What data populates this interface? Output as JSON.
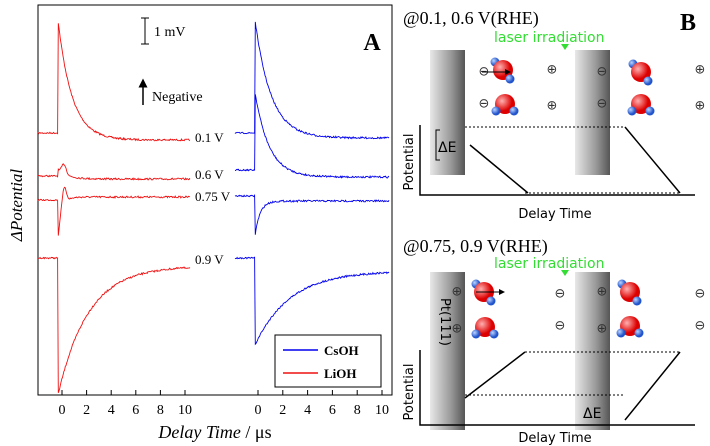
{
  "panel_a": {
    "label": "A",
    "scale_bar": "1 mV",
    "arrow_label": "Negative",
    "y_label": "ΔPotential",
    "x_label": "Delay Time",
    "x_unit": "/ μs",
    "xticks": [
      0,
      2,
      4,
      6,
      8,
      10
    ],
    "potential_labels": [
      "0.1 V",
      "0.6 V",
      "0.75 V",
      "0.9 V"
    ],
    "legend": [
      {
        "name": "CsOH",
        "color": "#0000ee"
      },
      {
        "name": "LiOH",
        "color": "#ee1111"
      }
    ]
  },
  "panel_b": {
    "label": "B",
    "top": {
      "title": "@0.1, 0.6 V(RHE)",
      "laser": "laser irradiation",
      "y_label": "Potential",
      "x_label": "Delay Time",
      "delta": "ΔE"
    },
    "bottom": {
      "title": "@0.75, 0.9 V(RHE)",
      "laser": "laser irradiation",
      "electrode": "Pt(111)",
      "y_label": "Potential",
      "x_label": "Delay Time",
      "delta": "ΔE"
    }
  }
}
